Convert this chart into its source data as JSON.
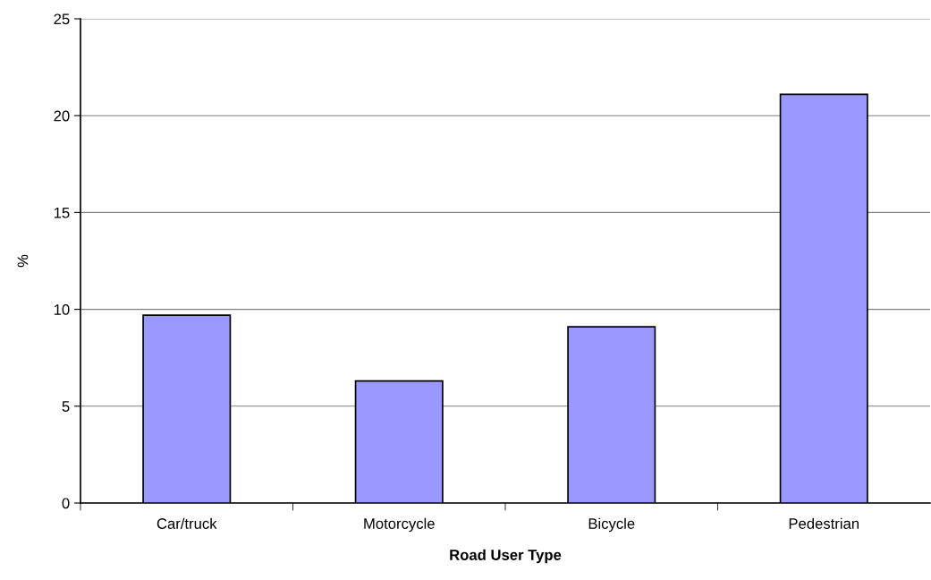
{
  "chart_data": {
    "type": "bar",
    "xlabel": "Road User Type",
    "ylabel": "%",
    "categories": [
      "Car/truck",
      "Motorcycle",
      "Bicycle",
      "Pedestrian"
    ],
    "values": [
      9.7,
      6.3,
      9.1,
      21.1
    ],
    "color": "#9999ff",
    "ylim": [
      0,
      25
    ],
    "yticks": [
      0,
      5,
      10,
      15,
      20,
      25
    ],
    "grid": "y",
    "legend": false
  }
}
